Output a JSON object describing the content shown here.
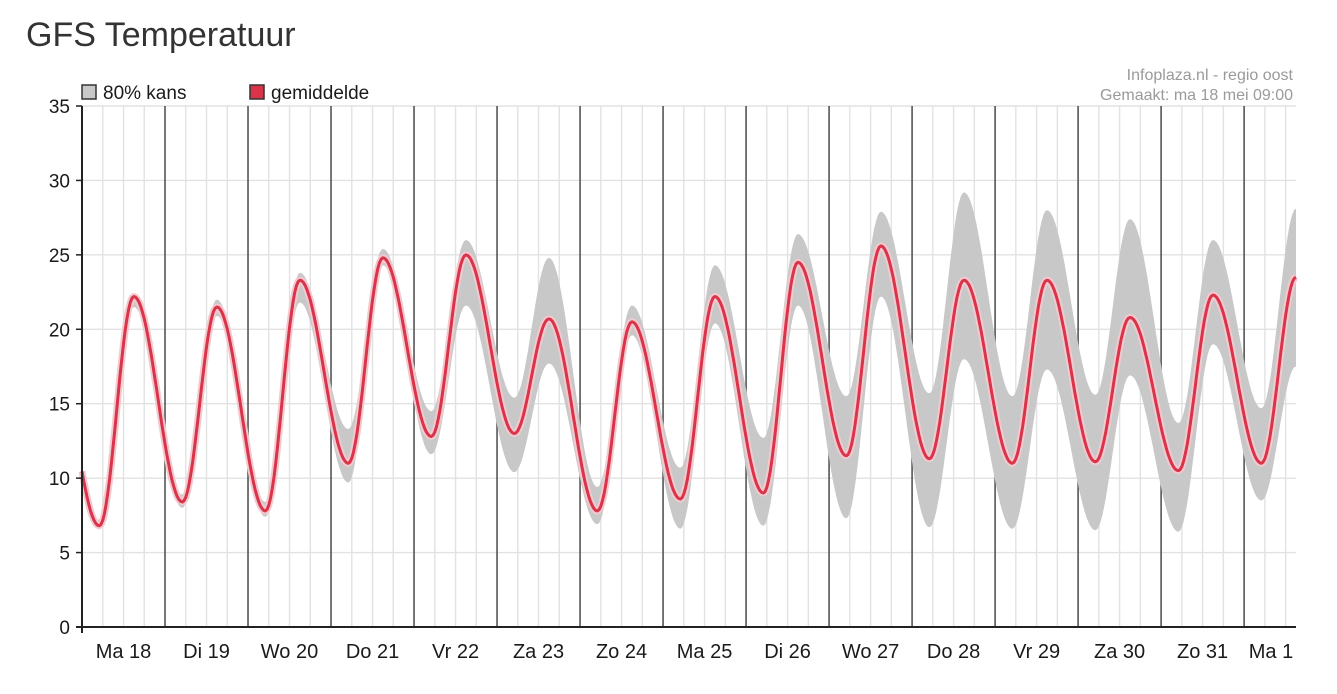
{
  "title": "GFS Temperatuur",
  "credit": {
    "line1": "Infoplaza.nl - regio oost",
    "line2": "Gemaakt: ma 18 mei 09:00"
  },
  "legend": [
    {
      "label": "80% kans",
      "color": "#c8c8c8"
    },
    {
      "label": "gemiddelde",
      "color": "#d9344a"
    }
  ],
  "colors": {
    "band": "#c8c8c8",
    "mean": "#d9344a",
    "grid_minor": "#e2e2e2",
    "grid_day": "#555555",
    "axis": "#222222"
  },
  "chart_data": {
    "type": "area",
    "title": "GFS Temperatuur",
    "xlabel": "",
    "ylabel": "",
    "ylim": [
      0,
      35
    ],
    "yticks": [
      0,
      5,
      10,
      15,
      20,
      25,
      30,
      35
    ],
    "x_start": "Ma 18 00:00",
    "x_end": "Ma 1 15:00",
    "x_step_hours": 6,
    "days": [
      "Ma 18",
      "Di 19",
      "Wo 20",
      "Do 21",
      "Vr 22",
      "Za 23",
      "Zo 24",
      "Ma 25",
      "Di 26",
      "Wo 27",
      "Do 28",
      "Vr 29",
      "Za 30",
      "Zo 31",
      "Ma 1"
    ],
    "grid": true,
    "legend_position": "top-left",
    "series": [
      {
        "name": "gemiddelde",
        "type": "line",
        "min": [
          6.8,
          8.4,
          7.8,
          11.0,
          12.8,
          13.0,
          7.8,
          8.6,
          9.0,
          11.5,
          11.3,
          11.0,
          11.1,
          10.5,
          11.0
        ],
        "max": [
          22.2,
          21.5,
          23.3,
          24.8,
          25.0,
          20.7,
          20.5,
          22.2,
          24.5,
          25.6,
          23.3,
          23.3,
          20.8,
          22.3,
          23.5
        ]
      },
      {
        "name": "80% kans",
        "type": "band",
        "low_min": [
          6.6,
          8.0,
          7.4,
          9.7,
          11.6,
          10.4,
          6.9,
          6.6,
          6.8,
          7.3,
          6.7,
          6.6,
          6.5,
          6.4,
          8.5
        ],
        "high_min": [
          7.2,
          8.9,
          8.4,
          13.3,
          14.5,
          15.4,
          9.4,
          10.7,
          12.7,
          15.5,
          15.7,
          15.5,
          15.6,
          13.7,
          14.7
        ],
        "low_max": [
          21.5,
          20.9,
          21.8,
          24.3,
          21.6,
          17.7,
          19.6,
          20.4,
          21.6,
          22.2,
          18.0,
          17.3,
          16.9,
          19.0,
          17.5
        ],
        "high_max": [
          22.4,
          22.0,
          23.8,
          25.4,
          26.0,
          24.8,
          21.6,
          24.3,
          26.4,
          27.9,
          29.2,
          28.0,
          27.4,
          26.0,
          28.1
        ]
      }
    ]
  }
}
